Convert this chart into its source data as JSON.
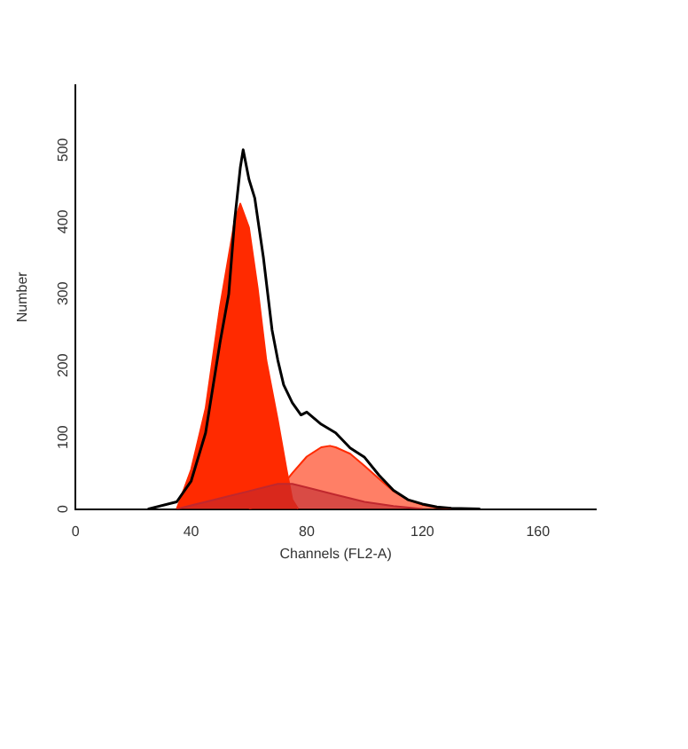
{
  "chart_data": {
    "type": "line",
    "xlabel": "Channels (FL2-A)",
    "ylabel": "Number",
    "xlim": [
      0,
      180
    ],
    "xticks": [
      0,
      40,
      80,
      120,
      160
    ],
    "ylim": [
      0,
      590
    ],
    "yticks": [
      0,
      100,
      200,
      300,
      400,
      500
    ],
    "grid": false,
    "legend": false,
    "marker": "none",
    "series": [
      {
        "type": "area",
        "color": "#ff2a00",
        "x": [
          35,
          40,
          45,
          50,
          55,
          57,
          60,
          63,
          66,
          70,
          73,
          75,
          77
        ],
        "values": [
          0,
          55,
          140,
          282,
          400,
          425,
          392,
          308,
          207,
          123,
          55,
          13,
          0
        ]
      },
      {
        "type": "area",
        "color": "#ff2a00",
        "x": [
          60,
          65,
          70,
          75,
          80,
          85,
          88,
          90,
          95,
          100,
          105,
          110,
          115,
          120,
          125,
          130
        ],
        "values": [
          0,
          8,
          25,
          50,
          73,
          86,
          88,
          86,
          77,
          60,
          42,
          25,
          13,
          6,
          2,
          0
        ]
      },
      {
        "type": "area",
        "color": "#c0282e",
        "x": [
          35,
          40,
          50,
          60,
          70,
          75,
          80,
          90,
          100,
          110,
          120
        ],
        "values": [
          0,
          5,
          15,
          25,
          35,
          35,
          30,
          20,
          10,
          4,
          0
        ]
      },
      {
        "type": "line",
        "color": "#000000",
        "x": [
          25,
          35,
          40,
          45,
          50,
          53,
          55,
          57,
          58,
          60,
          62,
          65,
          68,
          70,
          72,
          75,
          78,
          80,
          85,
          90,
          95,
          100,
          105,
          110,
          115,
          120,
          125,
          130,
          140
        ],
        "values": [
          0,
          10,
          39,
          106,
          232,
          299,
          400,
          475,
          500,
          459,
          433,
          350,
          249,
          207,
          173,
          148,
          131,
          135,
          118,
          106,
          85,
          72,
          47,
          26,
          13,
          7,
          3,
          1,
          0
        ]
      }
    ]
  }
}
